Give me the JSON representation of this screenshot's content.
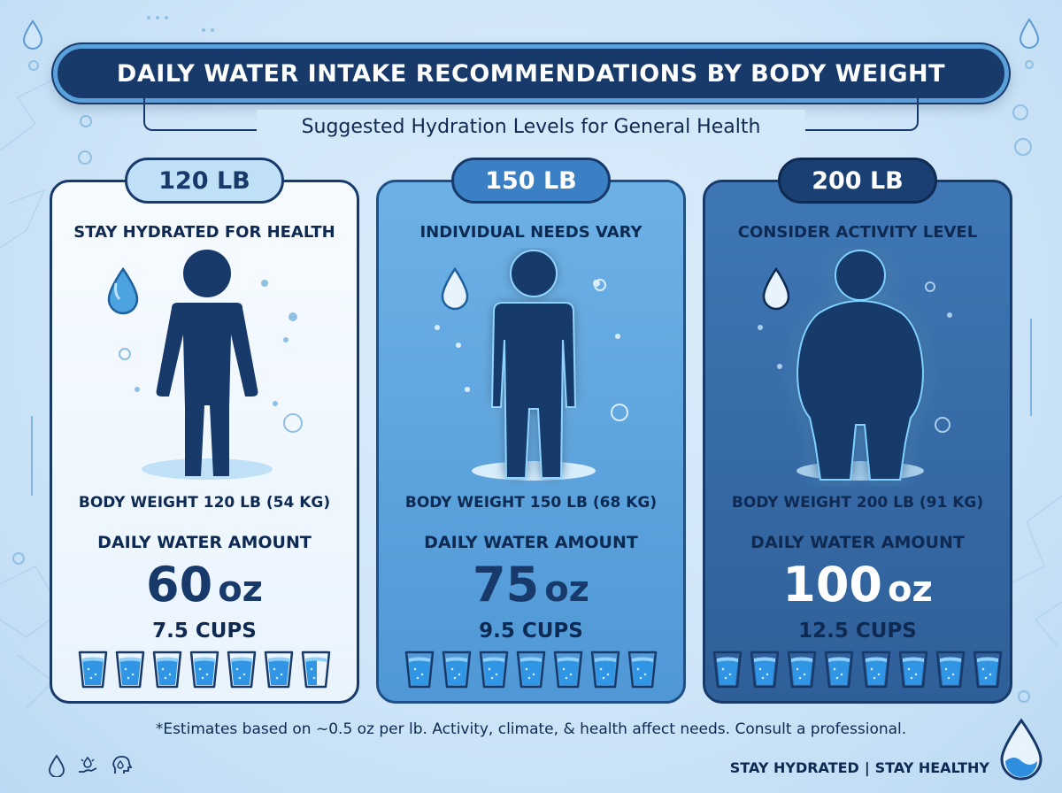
{
  "title": "DAILY WATER INTAKE RECOMMENDATIONS BY BODY WEIGHT",
  "subtitle": "Suggested Hydration Levels for General Health",
  "cards": [
    {
      "badge": "120 LB",
      "heading": "STAY HYDRATED FOR HEALTH",
      "weight_label": "BODY WEIGHT 120 LB (54 KG)",
      "daily_label": "DAILY WATER AMOUNT",
      "amount_value": "60",
      "amount_unit": "oz",
      "cups_label": "7.5 CUPS",
      "cups": 7.5
    },
    {
      "badge": "150 LB",
      "heading": "INDIVIDUAL NEEDS VARY",
      "weight_label": "BODY WEIGHT 150 LB (68 KG)",
      "daily_label": "DAILY WATER AMOUNT",
      "amount_value": "75",
      "amount_unit": "oz",
      "cups_label": "9.5 CUPS",
      "cups": 9.5
    },
    {
      "badge": "200 LB",
      "heading": "CONSIDER ACTIVITY LEVEL",
      "weight_label": "BODY WEIGHT 200 LB (91 KG)",
      "daily_label": "DAILY WATER AMOUNT",
      "amount_value": "100",
      "amount_unit": "oz",
      "cups_label": "12.5 CUPS",
      "cups": 12.5
    }
  ],
  "footnote": "*Estimates based on ~0.5 oz per lb. Activity, climate, & health affect needs. Consult a professional.",
  "tagline": {
    "left": "STAY HYDRATED",
    "separator": "|",
    "right": "STAY HEALTHY"
  },
  "icons": {
    "card_drop": "water-drop-icon",
    "figure": "person-silhouette-icon",
    "glass": "water-glass-icon",
    "footer": [
      "water-drop-icon",
      "hand-care-icon",
      "head-brain-icon"
    ],
    "corner": "water-drop-badge-icon"
  },
  "colors": {
    "navy": "#173a6b",
    "water": "#3aa0e8",
    "card1": "#f2f8fe",
    "card2": "#5fa6e0",
    "card3": "#3a6fae"
  }
}
